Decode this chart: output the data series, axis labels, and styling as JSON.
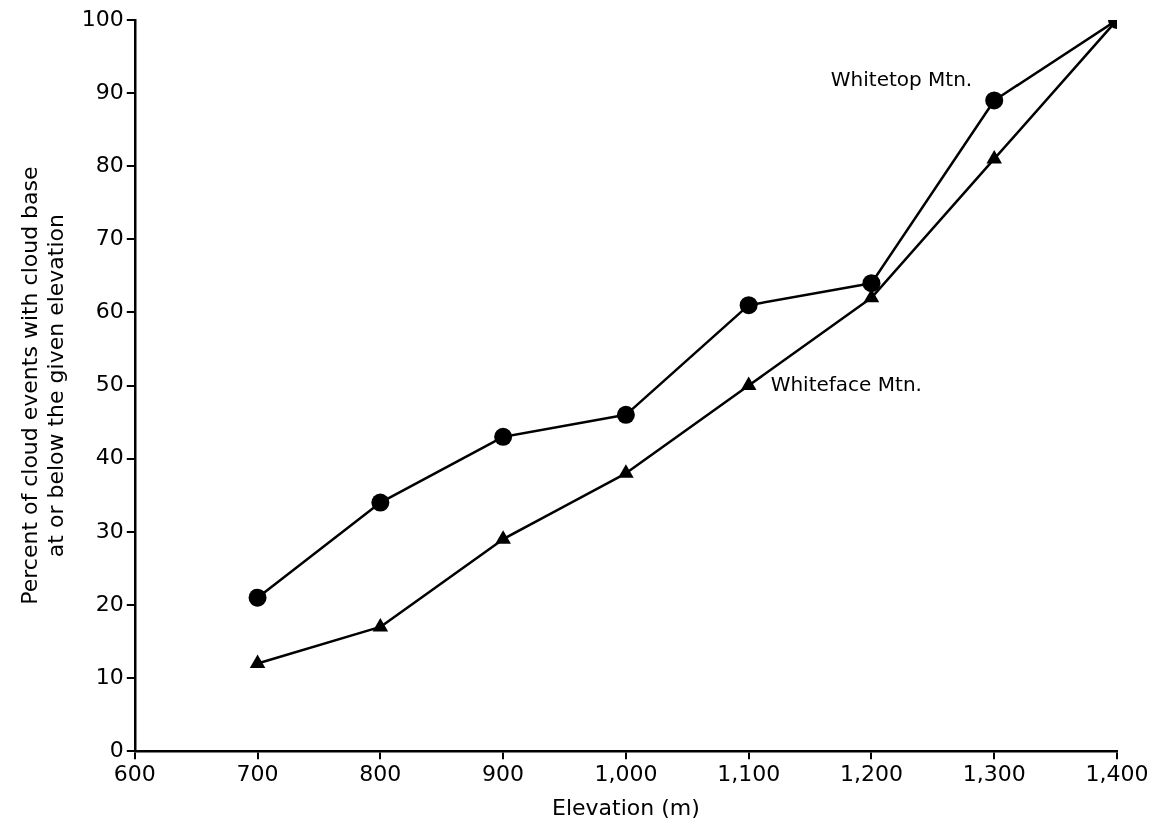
{
  "chart_data": {
    "type": "line",
    "xlabel": "Elevation (m)",
    "ylabel": "Percent of cloud events with cloud base\nat or below the given elevation",
    "x": [
      700,
      800,
      900,
      1000,
      1100,
      1200,
      1300,
      1400
    ],
    "series": [
      {
        "name": "Whitetop Mtn.",
        "color": "#000000",
        "marker": "circle",
        "values": [
          21,
          34,
          43,
          46,
          61,
          64,
          89,
          100
        ]
      },
      {
        "name": "Whiteface Mtn.",
        "color": "#000000",
        "marker": "triangle",
        "values": [
          12,
          17,
          29,
          38,
          50,
          62,
          81,
          100
        ]
      }
    ],
    "xlim": [
      600,
      1400
    ],
    "xticks": [
      600,
      700,
      800,
      900,
      {
        "value": 1000,
        "label": "1,000"
      },
      {
        "value": 1100,
        "label": "1,100"
      },
      {
        "value": 1200,
        "label": "1,200"
      },
      {
        "value": 1300,
        "label": "1,300"
      },
      {
        "value": 1400,
        "label": "1,400"
      }
    ],
    "ylim": [
      0,
      100
    ],
    "yticks": [
      0,
      10,
      20,
      30,
      40,
      50,
      60,
      70,
      80,
      90,
      100
    ],
    "grid": false,
    "legend": false,
    "line_style": "solid"
  }
}
